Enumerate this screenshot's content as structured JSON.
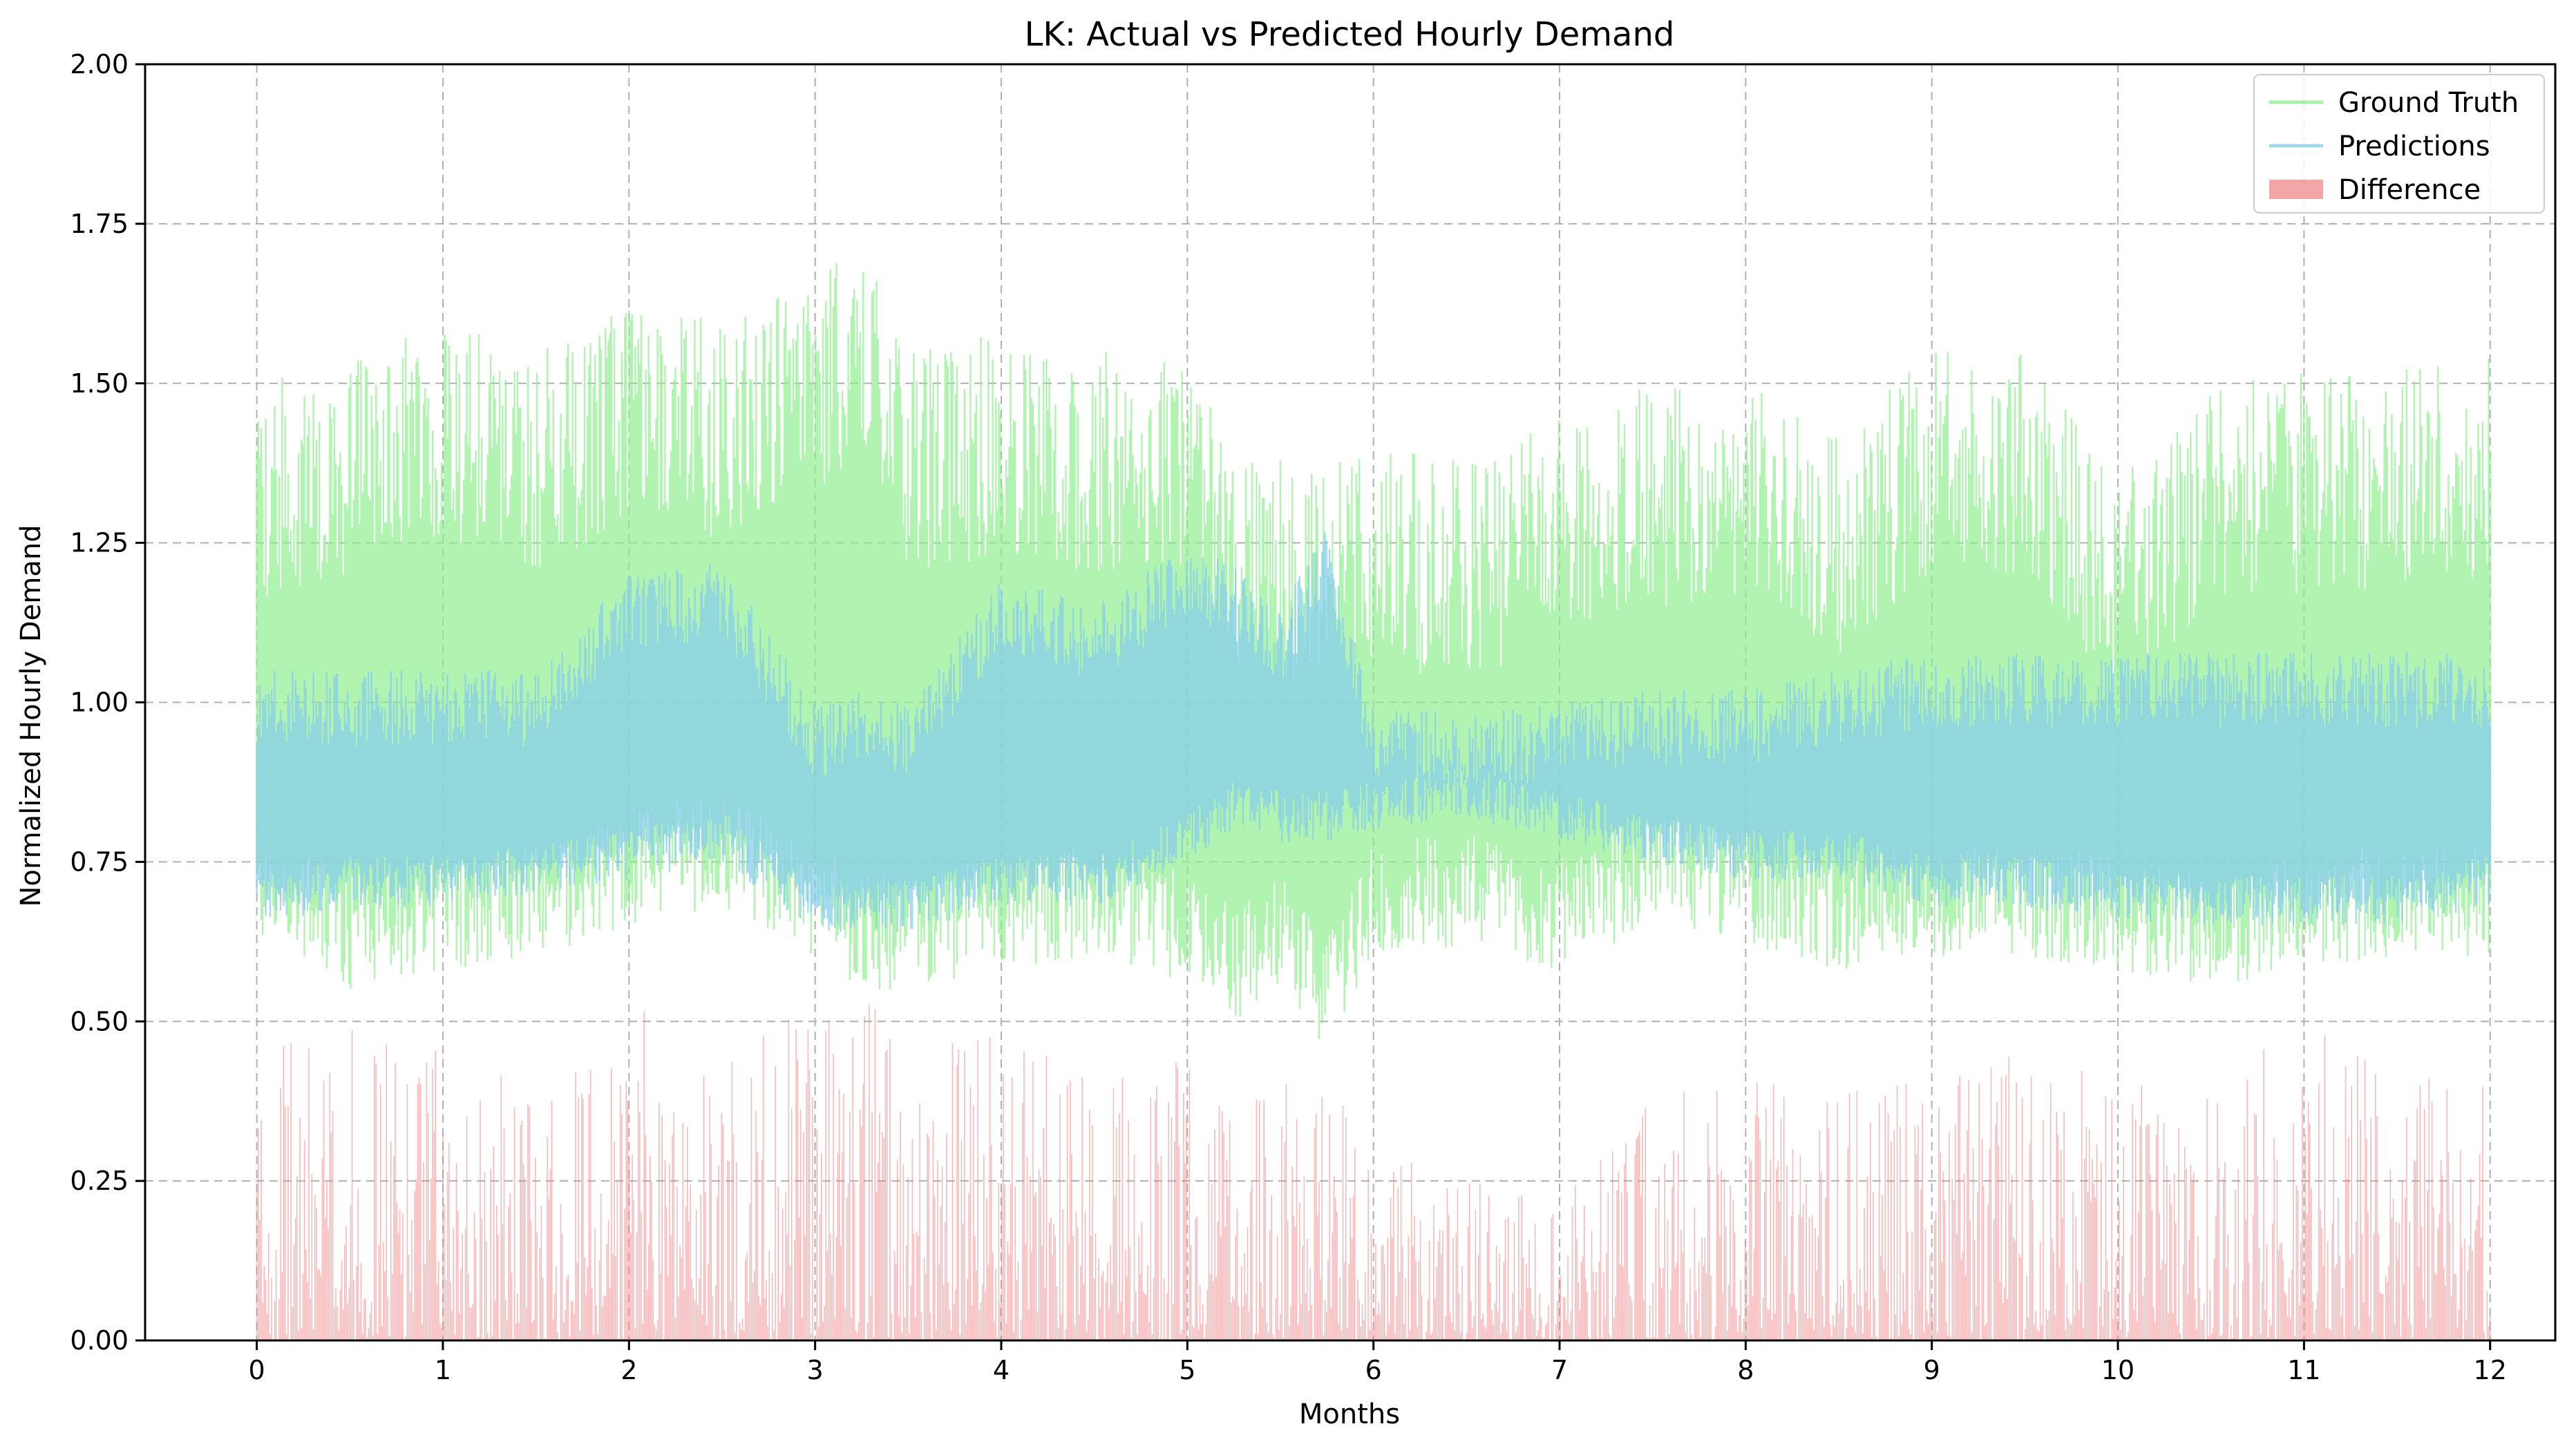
{
  "chart_data": {
    "type": "line",
    "title": "LK: Actual vs Predicted Hourly Demand",
    "xlabel": "Months",
    "ylabel": "Normalized Hourly Demand",
    "xlim": [
      -0.6,
      12.35
    ],
    "ylim": [
      0,
      2
    ],
    "xticks": [
      0,
      1,
      2,
      3,
      4,
      5,
      6,
      7,
      8,
      9,
      10,
      11,
      12
    ],
    "yticks": [
      0.0,
      0.25,
      0.5,
      0.75,
      1.0,
      1.25,
      1.5,
      1.75,
      2.0
    ],
    "ytick_labels": [
      "0.00",
      "0.25",
      "0.50",
      "0.75",
      "1.00",
      "1.25",
      "1.50",
      "1.75",
      "2.00"
    ],
    "grid": true,
    "grid_style": "dashed",
    "legend_position": "top-right",
    "colors": {
      "ground_truth": "#90ee90",
      "predictions": "#87ceeb",
      "difference": "#f08080",
      "grid": "#b0b0b0"
    },
    "legend": [
      {
        "label": "Ground Truth",
        "kind": "line",
        "color": "#90ee90"
      },
      {
        "label": "Predictions",
        "kind": "line",
        "color": "#87ceeb"
      },
      {
        "label": "Difference",
        "kind": "patch",
        "color": "#f08080"
      }
    ],
    "series_envelope": {
      "months": [
        0,
        0.5,
        1,
        1.5,
        2,
        2.5,
        3,
        3.25,
        3.5,
        4,
        4.5,
        5,
        5.25,
        5.5,
        5.75,
        6,
        6.5,
        7,
        7.5,
        8,
        8.5,
        9,
        9.5,
        10,
        10.5,
        11,
        11.5,
        12
      ],
      "ground_truth_min": [
        0.62,
        0.55,
        0.58,
        0.6,
        0.65,
        0.68,
        0.6,
        0.55,
        0.55,
        0.58,
        0.6,
        0.55,
        0.5,
        0.55,
        0.45,
        0.6,
        0.62,
        0.58,
        0.65,
        0.62,
        0.58,
        0.6,
        0.6,
        0.58,
        0.55,
        0.58,
        0.6,
        0.6
      ],
      "ground_truth_max": [
        1.5,
        1.55,
        1.6,
        1.55,
        1.62,
        1.6,
        1.68,
        1.72,
        1.55,
        1.58,
        1.55,
        1.55,
        1.4,
        1.38,
        1.38,
        1.4,
        1.38,
        1.45,
        1.5,
        1.5,
        1.42,
        1.55,
        1.55,
        1.35,
        1.5,
        1.52,
        1.52,
        1.55
      ],
      "predictions_min": [
        0.65,
        0.68,
        0.68,
        0.7,
        0.72,
        0.75,
        0.64,
        0.64,
        0.64,
        0.68,
        0.68,
        0.75,
        0.8,
        0.78,
        0.78,
        0.8,
        0.82,
        0.78,
        0.75,
        0.72,
        0.72,
        0.68,
        0.68,
        0.65,
        0.65,
        0.65,
        0.65,
        0.68
      ],
      "predictions_max": [
        1.05,
        1.05,
        1.05,
        1.05,
        1.2,
        1.22,
        1.0,
        1.02,
        1.0,
        1.2,
        1.15,
        1.25,
        1.22,
        1.15,
        1.28,
        1.0,
        0.98,
        1.0,
        1.02,
        1.02,
        1.05,
        1.08,
        1.08,
        1.08,
        1.08,
        1.08,
        1.08,
        1.08
      ],
      "difference_max": [
        0.45,
        0.5,
        0.48,
        0.4,
        0.55,
        0.42,
        0.6,
        0.55,
        0.45,
        0.5,
        0.4,
        0.45,
        0.38,
        0.42,
        0.42,
        0.3,
        0.25,
        0.22,
        0.4,
        0.42,
        0.38,
        0.45,
        0.48,
        0.4,
        0.42,
        0.5,
        0.45,
        0.4
      ]
    }
  }
}
